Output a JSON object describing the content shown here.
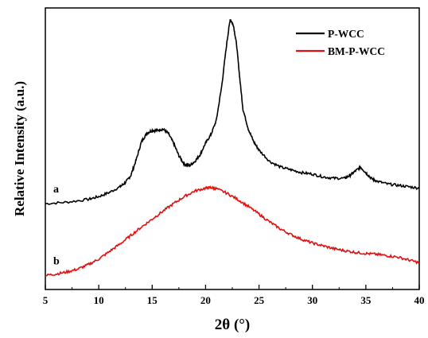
{
  "chart_data": {
    "type": "line",
    "title": "",
    "xlabel": "2θ (°)",
    "ylabel": "Relative Intensity (a.u.)",
    "xlim": [
      5,
      40
    ],
    "ylim": [
      0,
      10
    ],
    "x_ticks": [
      5,
      10,
      15,
      20,
      25,
      30,
      35,
      40
    ],
    "y_ticks_shown": false,
    "grid": false,
    "legend_position": "top-right",
    "series": [
      {
        "name": "P-WCC",
        "curve_label": "a",
        "color": "#000000",
        "x": [
          5,
          7,
          9,
          10,
          11,
          12,
          12.5,
          13,
          13.5,
          14,
          14.5,
          15,
          15.5,
          16,
          16.5,
          17,
          17.5,
          18,
          18.5,
          19,
          19.5,
          20,
          20.5,
          21,
          21.5,
          22,
          22.3,
          22.6,
          22.9,
          23.2,
          23.5,
          24,
          24.5,
          25,
          26,
          27,
          28,
          29,
          30,
          31,
          32,
          33,
          33.5,
          34,
          34.5,
          35,
          35.5,
          36,
          37,
          38,
          39,
          40
        ],
        "values": [
          3.05,
          3.1,
          3.2,
          3.3,
          3.45,
          3.65,
          3.8,
          4.05,
          4.6,
          5.25,
          5.55,
          5.65,
          5.65,
          5.7,
          5.55,
          5.2,
          4.75,
          4.45,
          4.4,
          4.55,
          4.8,
          5.2,
          5.5,
          6.0,
          7.2,
          8.8,
          9.6,
          9.4,
          8.7,
          7.5,
          6.4,
          5.7,
          5.25,
          4.95,
          4.55,
          4.35,
          4.25,
          4.15,
          4.1,
          4.0,
          3.95,
          3.95,
          4.05,
          4.2,
          4.35,
          4.15,
          3.95,
          3.85,
          3.75,
          3.7,
          3.65,
          3.6
        ]
      },
      {
        "name": "BM-P-WCC",
        "curve_label": "b",
        "color": "#e01010",
        "x": [
          5,
          6,
          7,
          8,
          9,
          10,
          11,
          12,
          13,
          14,
          15,
          16,
          17,
          18,
          19,
          20,
          20.5,
          21,
          22,
          23,
          24,
          25,
          26,
          27,
          28,
          29,
          30,
          31,
          32,
          33,
          34,
          35,
          36,
          37,
          38,
          39,
          40
        ],
        "values": [
          0.5,
          0.55,
          0.62,
          0.72,
          0.88,
          1.08,
          1.35,
          1.62,
          1.92,
          2.22,
          2.5,
          2.78,
          3.05,
          3.3,
          3.5,
          3.6,
          3.62,
          3.58,
          3.42,
          3.2,
          2.95,
          2.68,
          2.4,
          2.15,
          1.95,
          1.78,
          1.65,
          1.55,
          1.45,
          1.38,
          1.32,
          1.28,
          1.25,
          1.2,
          1.15,
          1.05,
          0.95
        ]
      }
    ]
  }
}
